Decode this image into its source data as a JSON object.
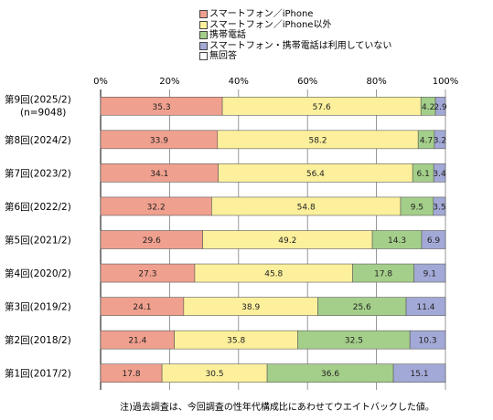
{
  "chart_data": {
    "type": "bar",
    "orientation": "horizontal",
    "stacked": true,
    "percent_stacked": true,
    "xlim": [
      0,
      100
    ],
    "x_ticks": [
      "0%",
      "20%",
      "40%",
      "60%",
      "80%",
      "100%"
    ],
    "grid": true,
    "legend_position": "top",
    "categories": [
      {
        "label": "第9回(2025/2)",
        "sublabel": "(n=9048)"
      },
      {
        "label": "第8回(2024/2)"
      },
      {
        "label": "第7回(2023/2)"
      },
      {
        "label": "第6回(2022/2)"
      },
      {
        "label": "第5回(2021/2)"
      },
      {
        "label": "第4回(2020/2)"
      },
      {
        "label": "第3回(2019/2)"
      },
      {
        "label": "第2回(2018/2)"
      },
      {
        "label": "第1回(2017/2)"
      }
    ],
    "series": [
      {
        "name": "スマートフォン／iPhone",
        "color": "#f0a08e",
        "values": [
          35.3,
          33.9,
          34.1,
          32.2,
          29.6,
          27.3,
          24.1,
          21.4,
          17.8
        ]
      },
      {
        "name": "スマートフォン／iPhone以外",
        "color": "#fdf09c",
        "values": [
          57.6,
          58.2,
          56.4,
          54.8,
          49.2,
          45.8,
          38.9,
          35.8,
          30.5
        ]
      },
      {
        "name": "携帯電話",
        "color": "#a4cf8a",
        "values": [
          4.2,
          4.7,
          6.1,
          9.5,
          14.3,
          17.8,
          25.6,
          32.5,
          36.6
        ]
      },
      {
        "name": "スマートフォン・携帯電話は利用していない",
        "color": "#a3a9d6",
        "values": [
          2.9,
          3.2,
          3.4,
          3.5,
          6.9,
          9.1,
          11.4,
          10.3,
          15.1
        ]
      },
      {
        "name": "無回答",
        "color": "#ffffff",
        "values": [
          0,
          0,
          0,
          0,
          0,
          0,
          0,
          0,
          0
        ]
      }
    ]
  },
  "note": "注)過去調査は、今回調査の性年代構成比にあわせてウエイトバックした値。"
}
